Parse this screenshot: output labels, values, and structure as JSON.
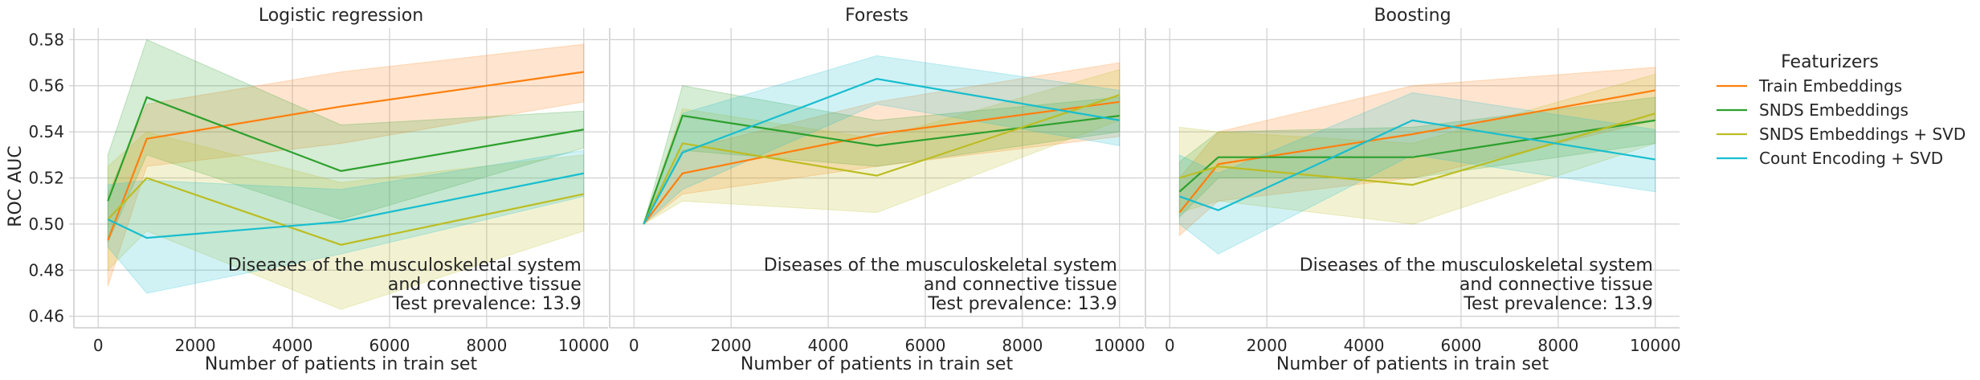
{
  "chart_data": {
    "type": "line",
    "ylabel": "ROC AUC",
    "xlabel": "Number of patients in train set",
    "xlim": [
      -500,
      10500
    ],
    "ylim": [
      0.455,
      0.585
    ],
    "x_ticks": [
      0,
      2000,
      4000,
      6000,
      8000,
      10000
    ],
    "y_ticks": [
      0.46,
      0.48,
      0.5,
      0.52,
      0.54,
      0.56,
      0.58
    ],
    "grid": true,
    "legend": {
      "title": "Featurizers",
      "placement": "right",
      "entries": [
        {
          "name": "Train Embeddings",
          "color": "#ff7f0e"
        },
        {
          "name": "SNDS Embeddings",
          "color": "#2ca02c"
        },
        {
          "name": "SNDS Embeddings + SVD",
          "color": "#bcbd22"
        },
        {
          "name": "Count Encoding + SVD",
          "color": "#17becf"
        }
      ]
    },
    "annotation": [
      "Diseases of the musculoskeletal system",
      "and connective tissue",
      "Test prevalence: 13.9"
    ],
    "panels": [
      {
        "title": "Logistic regression",
        "x": [
          200,
          1000,
          5000,
          10000
        ],
        "series": [
          {
            "name": "Train Embeddings",
            "values": [
              0.493,
              0.537,
              0.551,
              0.566
            ],
            "lower": [
              0.473,
              0.525,
              0.535,
              0.553
            ],
            "upper": [
              0.513,
              0.552,
              0.566,
              0.578
            ]
          },
          {
            "name": "SNDS Embeddings",
            "values": [
              0.51,
              0.555,
              0.523,
              0.541
            ],
            "lower": [
              0.492,
              0.53,
              0.502,
              0.533
            ],
            "upper": [
              0.53,
              0.58,
              0.543,
              0.549
            ]
          },
          {
            "name": "SNDS Embeddings + SVD",
            "values": [
              0.502,
              0.52,
              0.491,
              0.513
            ],
            "lower": [
              0.48,
              0.497,
              0.463,
              0.497
            ],
            "upper": [
              0.525,
              0.54,
              0.518,
              0.53
            ]
          },
          {
            "name": "Count Encoding + SVD",
            "values": [
              0.502,
              0.494,
              0.501,
              0.522
            ],
            "lower": [
              0.49,
              0.47,
              0.487,
              0.512
            ],
            "upper": [
              0.517,
              0.519,
              0.515,
              0.532
            ]
          }
        ]
      },
      {
        "title": "Forests",
        "x": [
          200,
          1000,
          5000,
          10000
        ],
        "series": [
          {
            "name": "Train Embeddings",
            "values": [
              0.5,
              0.522,
              0.539,
              0.553
            ],
            "lower": [
              0.5,
              0.513,
              0.525,
              0.538
            ],
            "upper": [
              0.5,
              0.532,
              0.553,
              0.57
            ]
          },
          {
            "name": "SNDS Embeddings",
            "values": [
              0.5,
              0.547,
              0.534,
              0.547
            ],
            "lower": [
              0.5,
              0.532,
              0.525,
              0.54
            ],
            "upper": [
              0.5,
              0.56,
              0.545,
              0.555
            ]
          },
          {
            "name": "SNDS Embeddings + SVD",
            "values": [
              0.5,
              0.535,
              0.521,
              0.556
            ],
            "lower": [
              0.5,
              0.51,
              0.505,
              0.545
            ],
            "upper": [
              0.5,
              0.55,
              0.537,
              0.567
            ]
          },
          {
            "name": "Count Encoding + SVD",
            "values": [
              0.5,
              0.531,
              0.563,
              0.545
            ],
            "lower": [
              0.5,
              0.515,
              0.552,
              0.534
            ],
            "upper": [
              0.5,
              0.548,
              0.573,
              0.558
            ]
          }
        ]
      },
      {
        "title": "Boosting",
        "x": [
          200,
          1000,
          5000,
          10000
        ],
        "series": [
          {
            "name": "Train Embeddings",
            "values": [
              0.505,
              0.526,
              0.539,
              0.558
            ],
            "lower": [
              0.495,
              0.51,
              0.52,
              0.545
            ],
            "upper": [
              0.52,
              0.54,
              0.56,
              0.568
            ]
          },
          {
            "name": "SNDS Embeddings",
            "values": [
              0.514,
              0.529,
              0.529,
              0.545
            ],
            "lower": [
              0.503,
              0.52,
              0.52,
              0.535
            ],
            "upper": [
              0.527,
              0.54,
              0.542,
              0.555
            ]
          },
          {
            "name": "SNDS Embeddings + SVD",
            "values": [
              0.52,
              0.525,
              0.517,
              0.548
            ],
            "lower": [
              0.505,
              0.51,
              0.5,
              0.535
            ],
            "upper": [
              0.542,
              0.54,
              0.535,
              0.565
            ]
          },
          {
            "name": "Count Encoding + SVD",
            "values": [
              0.512,
              0.506,
              0.545,
              0.528
            ],
            "lower": [
              0.5,
              0.487,
              0.53,
              0.514
            ],
            "upper": [
              0.53,
              0.522,
              0.557,
              0.541
            ]
          }
        ]
      }
    ]
  }
}
